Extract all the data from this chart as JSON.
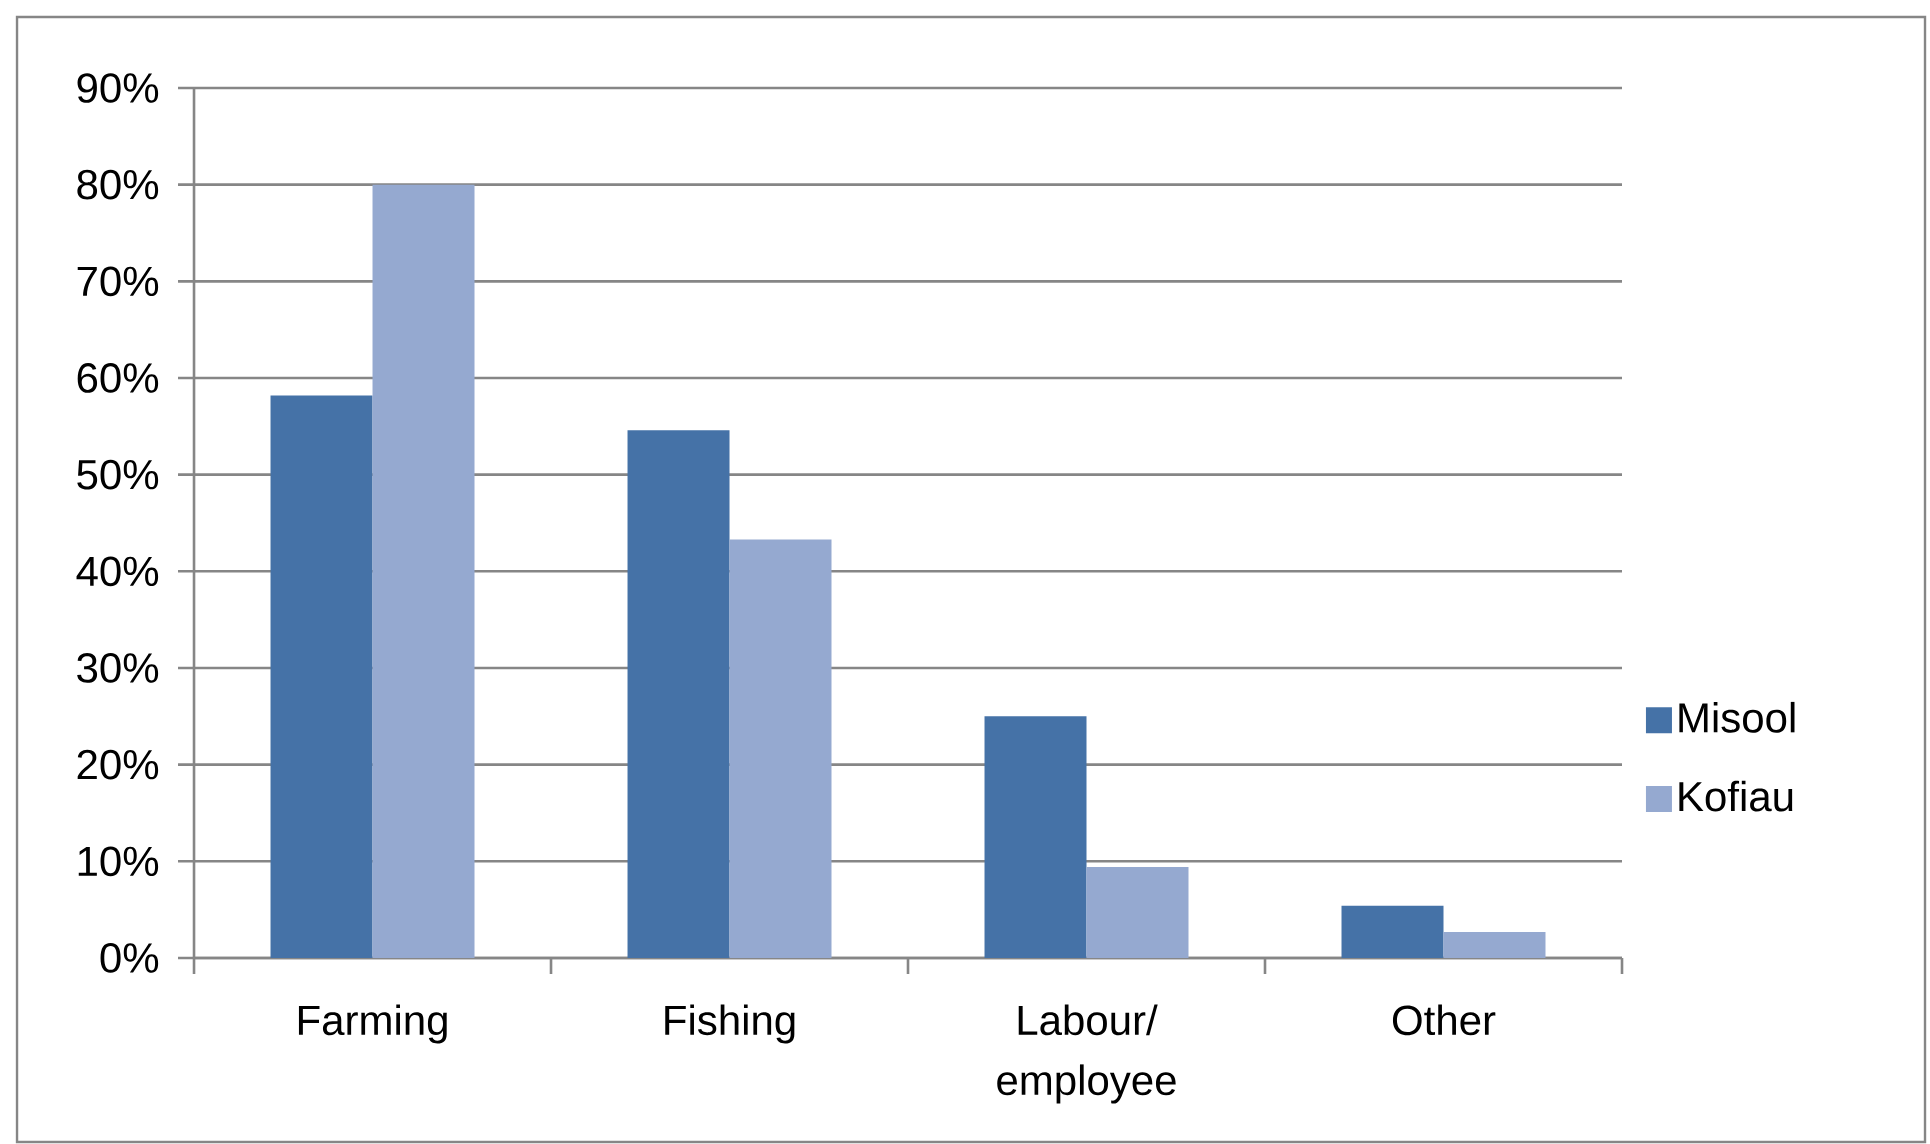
{
  "chart_data": {
    "type": "bar",
    "categories": [
      "Farming",
      "Fishing",
      "Labour/ employee",
      "Other"
    ],
    "series": [
      {
        "name": "Misool",
        "color": "#4572a7",
        "values": [
          58.2,
          54.6,
          25,
          5.4
        ]
      },
      {
        "name": "Kofiau",
        "color": "#95a9d0",
        "values": [
          80,
          43.3,
          9.4,
          2.7
        ]
      }
    ],
    "ylim": [
      0,
      90
    ],
    "yticks": [
      {
        "value": 0,
        "label": "0%"
      },
      {
        "value": 10,
        "label": "10%"
      },
      {
        "value": 20,
        "label": "20%"
      },
      {
        "value": 30,
        "label": "30%"
      },
      {
        "value": 40,
        "label": "40%"
      },
      {
        "value": 50,
        "label": "50%"
      },
      {
        "value": 60,
        "label": "60%"
      },
      {
        "value": 70,
        "label": "70%"
      },
      {
        "value": 80,
        "label": "80%"
      },
      {
        "value": 90,
        "label": "90%"
      }
    ],
    "grid": "y",
    "legend": "right"
  }
}
